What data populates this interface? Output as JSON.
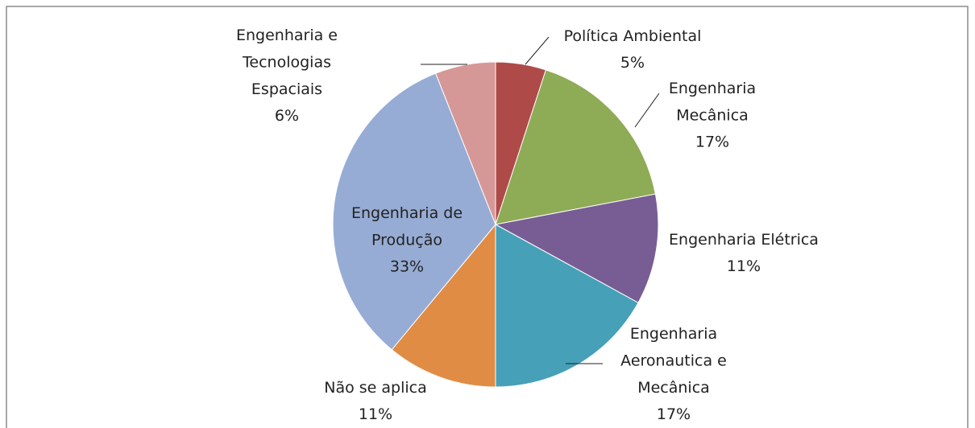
{
  "chart_data": {
    "type": "pie",
    "categories": [
      "Política Ambiental",
      "Engenharia Mecânica",
      "Engenharia Elétrica",
      "Engenharia Aeronautica e Mecânica",
      "Não se aplica",
      "Engenharia de Produção",
      "Engenharia e Tecnologias Espaciais"
    ],
    "values": [
      5,
      17,
      11,
      17,
      11,
      33,
      6
    ],
    "value_labels": [
      "5%",
      "17%",
      "11%",
      "17%",
      "11%",
      "33%",
      "6%"
    ],
    "colors": [
      "#ae4b48",
      "#8eab56",
      "#785d95",
      "#46a0b8",
      "#e08c45",
      "#97acd4",
      "#d69896"
    ]
  }
}
